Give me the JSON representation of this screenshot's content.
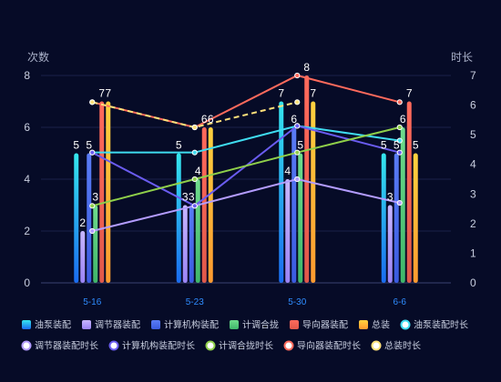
{
  "chart_data": {
    "type": "bar",
    "categories": [
      "5-16",
      "5-23",
      "5-30",
      "6-6"
    ],
    "ylabel_left": "次数",
    "ylabel_right": "时长",
    "ylim_left": [
      0,
      8
    ],
    "ylim_right": [
      0,
      7
    ],
    "left_ticks": [
      0,
      2,
      4,
      6,
      8
    ],
    "right_ticks": [
      0,
      1,
      2,
      3,
      4,
      5,
      6,
      7
    ],
    "bar_series": [
      {
        "name": "油泵装配",
        "color_top": "#35e7ee",
        "color_bottom": "#1a6cf0",
        "values": [
          5,
          5,
          7,
          5
        ]
      },
      {
        "name": "调节器装配",
        "color_top": "#c7b6ff",
        "color_bottom": "#9b84f5",
        "values": [
          2,
          3,
          4,
          3
        ]
      },
      {
        "name": "计算机构装配",
        "color_top": "#5a7cf5",
        "color_bottom": "#3a5be0",
        "values": [
          5,
          3,
          6,
          5
        ]
      },
      {
        "name": "计调合拢",
        "color_top": "#6fdc8c",
        "color_bottom": "#3fb66a",
        "values": [
          3,
          4,
          5,
          6
        ]
      },
      {
        "name": "导向器装配",
        "color_top": "#ff6a5c",
        "color_bottom": "#e0584a",
        "values": [
          7,
          6,
          8,
          7
        ]
      },
      {
        "name": "总装",
        "color_top": "#ffd23f",
        "color_bottom": "#ff9a2f",
        "values": [
          7,
          6,
          7,
          5
        ]
      }
    ],
    "bar_labels": [
      [
        "5",
        "2",
        "5",
        "3",
        "7",
        "7"
      ],
      [
        "5",
        "3",
        "3",
        "4",
        "6",
        "6"
      ],
      [
        "7",
        "4",
        "6",
        "5",
        "8",
        "7"
      ],
      [
        "5",
        "3",
        "5",
        "6",
        "7",
        "5"
      ]
    ],
    "line_series": [
      {
        "name": "油泵装配时长",
        "color": "#3fdcf0",
        "dashed": false,
        "values": [
          4.4,
          4.4,
          5.3,
          4.8
        ]
      },
      {
        "name": "调节器装配时长",
        "color": "#b39cff",
        "dashed": false,
        "values": [
          1.75,
          2.6,
          3.5,
          2.7
        ]
      },
      {
        "name": "计算机构装配时长",
        "color": "#6a5cf0",
        "dashed": false,
        "values": [
          4.4,
          2.6,
          5.3,
          4.4
        ]
      },
      {
        "name": "计调合拢时长",
        "color": "#8fcf4a",
        "dashed": false,
        "values": [
          2.6,
          3.5,
          4.4,
          5.25
        ]
      },
      {
        "name": "导向器装配时长",
        "color": "#ff6a5c",
        "dashed": false,
        "values": [
          6.1,
          5.25,
          7.0,
          6.1
        ]
      },
      {
        "name": "总装时长",
        "color": "#ffe17a",
        "dashed": true,
        "values": [
          6.1,
          5.25,
          6.1,
          null
        ]
      }
    ],
    "legend_position": "bottom"
  }
}
